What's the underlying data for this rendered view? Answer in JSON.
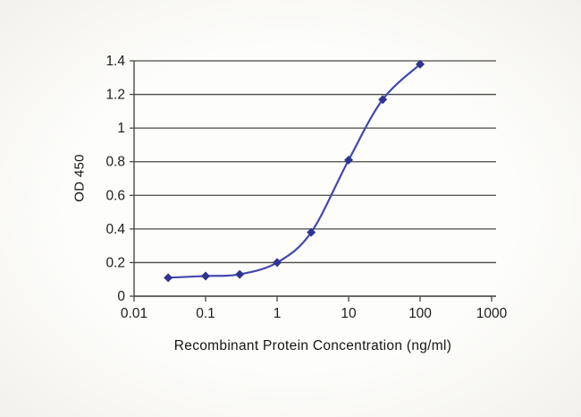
{
  "chart_data": {
    "type": "line",
    "title": "",
    "xlabel": "Recombinant Protein Concentration (ng/ml)",
    "ylabel": "OD 450",
    "x_scale": "log",
    "xlim": [
      0.01,
      1000
    ],
    "ylim": [
      0,
      1.4
    ],
    "x": [
      0.03,
      0.1,
      0.3,
      1,
      3,
      10,
      30,
      100
    ],
    "y": [
      0.11,
      0.12,
      0.13,
      0.2,
      0.38,
      0.81,
      1.17,
      1.38
    ],
    "x_ticks": [
      0.01,
      0.1,
      1,
      10,
      100,
      1000
    ],
    "x_tick_labels": [
      "0.01",
      "0.1",
      "1",
      "10",
      "100",
      "1000"
    ],
    "y_ticks": [
      0,
      0.2,
      0.4,
      0.6,
      0.8,
      1,
      1.2,
      1.4
    ],
    "y_tick_labels": [
      "0",
      "0.2",
      "0.4",
      "0.6",
      "0.8",
      "1",
      "1.2",
      "1.4"
    ],
    "grid": "horizontal",
    "legend": "none",
    "line_color": "#4348ad",
    "marker": "diamond",
    "marker_color": "#30338f",
    "axis_color": "#4a4a44"
  }
}
